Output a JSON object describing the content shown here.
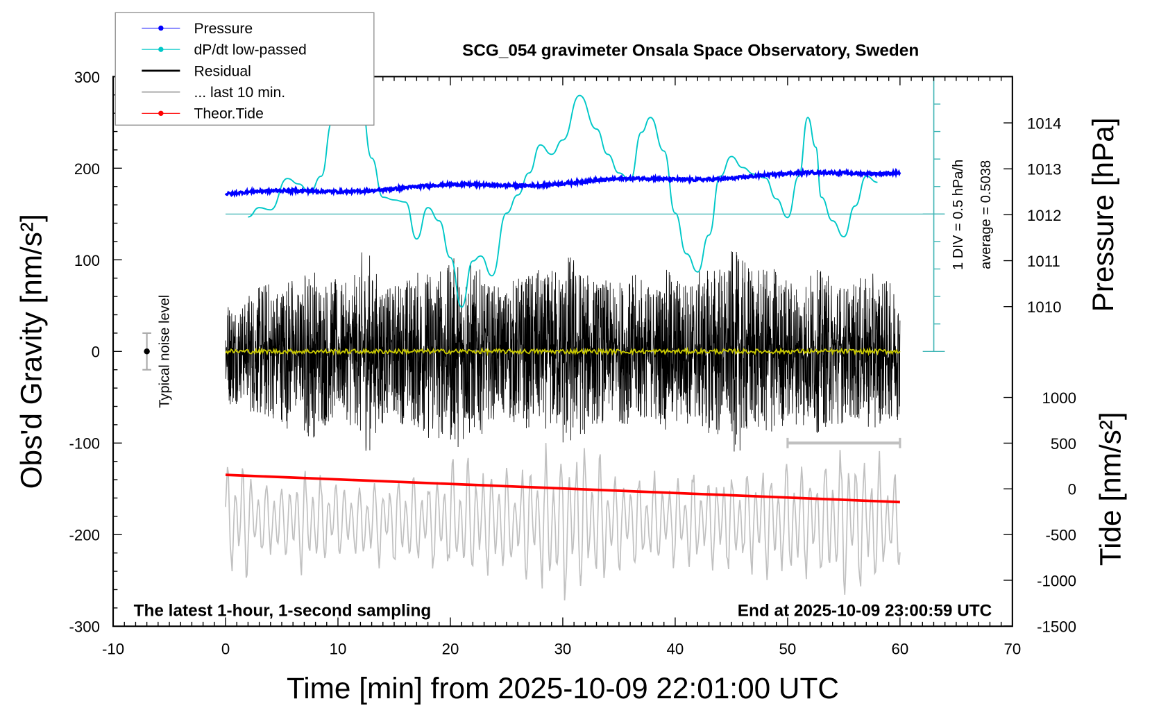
{
  "chart_data": {
    "type": "line",
    "title": "SCG_054 gravimeter Onsala Space Observatory, Sweden",
    "xlabel": "Time [min] from 2025-10-09 22:01:00 UTC",
    "ylabel_left": "Obs'd Gravity [nm/s²]",
    "ylabel_right_pressure": "Pressure [hPa]",
    "ylabel_right_tide": "Tide [nm/s²]",
    "xlim": [
      -10,
      70
    ],
    "ylim_left": [
      -300,
      300
    ],
    "ylim_pressure_ticks": [
      1010,
      1014
    ],
    "ylim_tide": [
      -1500,
      1000
    ],
    "x_ticks": [
      "-10",
      "0",
      "10",
      "20",
      "30",
      "40",
      "50",
      "60",
      "70"
    ],
    "y_ticks_left": [
      "300",
      "200",
      "100",
      "0",
      "-100",
      "-200",
      "-300"
    ],
    "y_ticks_pressure": [
      "1014",
      "1013",
      "1012",
      "1011",
      "1010"
    ],
    "y_ticks_tide": [
      "1000",
      "500",
      "0",
      "-500",
      "-1000",
      "-1500"
    ],
    "legend": {
      "placement": "top-left",
      "entries": [
        {
          "name": "Pressure",
          "color": "#0000ff"
        },
        {
          "name": "dP/dt low-passed",
          "color": "#00c8c8"
        },
        {
          "name": "Residual",
          "color": "#000000"
        },
        {
          "name": "... last 10 min.",
          "color": "#c0c0c0"
        },
        {
          "name": "Theor.Tide",
          "color": "#ff0000"
        }
      ]
    },
    "annotations": {
      "sampling": "The latest 1-hour, 1-second sampling",
      "end_time": "End at 2025-10-09 23:00:59 UTC",
      "noise_label": "Typical noise level",
      "div_label": "1 DIV = 0.5 hPa/h",
      "average_label": "average = 0.5038"
    },
    "noise_level": {
      "x": -7,
      "center": 0,
      "half_range": 20
    },
    "last10_marker": {
      "x_start": 50,
      "x_end": 60,
      "y": -100
    },
    "series": {
      "pressure_hPa": {
        "x": [
          0,
          60
        ],
        "y": [
          1012.45,
          1012.95
        ]
      },
      "dpdt_hPa_per_h": {
        "average": 0.5038,
        "div": 0.5,
        "points": [
          [
            2,
            0.45
          ],
          [
            3,
            0.62
          ],
          [
            4,
            0.58
          ],
          [
            5.5,
            1.15
          ],
          [
            6.5,
            1.05
          ],
          [
            7.5,
            0.89
          ],
          [
            8.5,
            1.19
          ],
          [
            9.5,
            2.19
          ],
          [
            10.5,
            3.06
          ],
          [
            12,
            2.66
          ],
          [
            13,
            1.52
          ],
          [
            14,
            0.81
          ],
          [
            15,
            0.76
          ],
          [
            16,
            0.72
          ],
          [
            17,
            0.05
          ],
          [
            18,
            0.62
          ],
          [
            19,
            0.38
          ],
          [
            20,
            -0.29
          ],
          [
            21,
            -1.19
          ],
          [
            22,
            -0.35
          ],
          [
            22.7,
            -0.26
          ],
          [
            23.7,
            -0.62
          ],
          [
            25,
            0.52
          ],
          [
            26,
            0.85
          ],
          [
            27,
            1.25
          ],
          [
            28,
            1.76
          ],
          [
            29,
            1.59
          ],
          [
            30,
            1.85
          ],
          [
            31.5,
            2.66
          ],
          [
            33,
            2.05
          ],
          [
            34,
            1.59
          ],
          [
            35,
            1.25
          ],
          [
            36,
            1.12
          ],
          [
            37,
            1.99
          ],
          [
            37.8,
            2.26
          ],
          [
            39,
            1.65
          ],
          [
            40,
            0.52
          ],
          [
            41,
            -0.22
          ],
          [
            42,
            -0.55
          ],
          [
            43,
            0.12
          ],
          [
            44,
            1.19
          ],
          [
            45,
            1.55
          ],
          [
            46,
            1.35
          ],
          [
            47,
            1.23
          ],
          [
            48,
            1.16
          ],
          [
            49,
            0.78
          ],
          [
            50,
            0.44
          ],
          [
            51,
            1.19
          ],
          [
            51.8,
            2.26
          ],
          [
            52.5,
            1.72
          ],
          [
            53,
            0.81
          ],
          [
            54,
            0.38
          ],
          [
            55,
            0.09
          ],
          [
            56,
            0.65
          ],
          [
            57,
            1.19
          ],
          [
            58,
            1.08
          ]
        ]
      },
      "residual_peak_abs_per_min": [
        60,
        55,
        70,
        80,
        75,
        85,
        70,
        95,
        85,
        80,
        75,
        85,
        110,
        90,
        70,
        80,
        85,
        90,
        100,
        95,
        105,
        100,
        90,
        75,
        70,
        80,
        85,
        90,
        85,
        95,
        110,
        95,
        85,
        80,
        75,
        80,
        85,
        75,
        80,
        90,
        85,
        80,
        90,
        100,
        95,
        110,
        100,
        90,
        95,
        85,
        80,
        85,
        90,
        85,
        80,
        75,
        80,
        85,
        80,
        75,
        70
      ],
      "last10_center": -185,
      "last10_peak_abs_per_min": [
        70,
        80,
        60,
        50,
        60,
        55,
        65,
        70,
        60,
        55,
        50,
        50,
        55,
        60,
        55,
        60,
        65,
        55,
        60,
        70,
        75,
        80,
        85,
        70,
        75,
        60,
        70,
        80,
        90,
        100,
        120,
        110,
        100,
        80,
        70,
        60,
        60,
        70,
        60,
        55,
        60,
        70,
        60,
        65,
        70,
        60,
        70,
        80,
        75,
        70,
        80,
        70,
        80,
        85,
        90,
        100,
        90,
        85,
        80,
        70,
        60
      ],
      "theor_tide_nm_s2": {
        "x": [
          0,
          60
        ],
        "y": [
          153,
          -145
        ]
      },
      "residual_mean": 0
    }
  }
}
